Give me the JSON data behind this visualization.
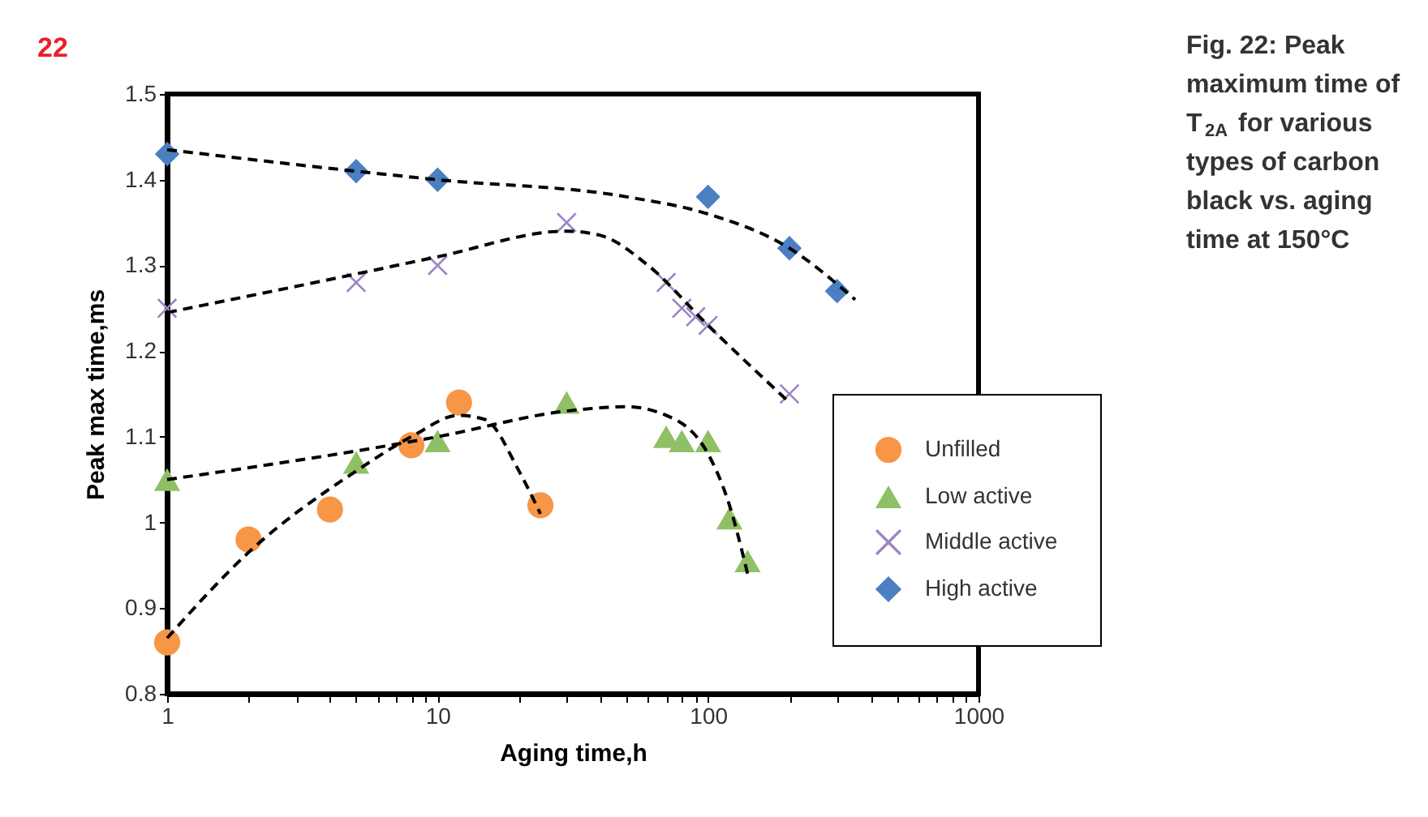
{
  "chart_data": {
    "type": "scatter",
    "title": "Fig. 22: Peak maximum time of T$_{2A}$ for various types of carbon black vs. aging time at 150°C",
    "xlabel": "Aging time,h",
    "ylabel": "Peak max time,ms",
    "annotations": [
      "22"
    ],
    "log": "x",
    "xlim": [
      1,
      1000
    ],
    "ylim": [
      0.8,
      1.5
    ],
    "xticks": [
      1,
      {
        "value": 2,
        "label": null
      },
      {
        "value": 3,
        "label": null
      },
      {
        "value": 4,
        "label": null
      },
      {
        "value": 5,
        "label": null
      },
      {
        "value": 6,
        "label": null
      },
      {
        "value": 7,
        "label": null
      },
      {
        "value": 8,
        "label": null
      },
      {
        "value": 9,
        "label": null
      },
      10,
      {
        "value": 20,
        "label": null
      },
      {
        "value": 30,
        "label": null
      },
      {
        "value": 40,
        "label": null
      },
      {
        "value": 50,
        "label": null
      },
      {
        "value": 60,
        "label": null
      },
      {
        "value": 70,
        "label": null
      },
      {
        "value": 80,
        "label": null
      },
      {
        "value": 90,
        "label": null
      },
      100,
      {
        "value": 200,
        "label": null
      },
      {
        "value": 300,
        "label": null
      },
      {
        "value": 400,
        "label": null
      },
      {
        "value": 500,
        "label": null
      },
      {
        "value": 600,
        "label": null
      },
      {
        "value": 700,
        "label": null
      },
      {
        "value": 800,
        "label": null
      },
      {
        "value": 900,
        "label": null
      },
      1000
    ],
    "yticks": [
      0.8,
      0.9,
      1,
      1.1,
      1.2,
      1.3,
      1.4,
      1.5
    ],
    "grid": false,
    "legend": "bottom right",
    "series": [
      {
        "type": "line",
        "color": "#000000",
        "line_style": "dashed",
        "x": [
          1,
          2,
          5,
          8,
          12,
          15,
          20,
          24
        ],
        "values": [
          0.865,
          0.965,
          1.06,
          1.1,
          1.125,
          1.12,
          1.06,
          1.01
        ]
      },
      {
        "type": "line",
        "color": "#000000",
        "line_style": "dashed",
        "x": [
          1,
          10,
          30,
          50,
          70,
          100,
          120,
          140
        ],
        "values": [
          1.05,
          1.1,
          1.13,
          1.135,
          1.125,
          1.08,
          1.02,
          0.94
        ]
      },
      {
        "type": "line",
        "color": "#000000",
        "line_style": "dashed",
        "x": [
          1,
          5,
          10,
          30,
          40,
          60,
          100,
          200
        ],
        "values": [
          1.245,
          1.29,
          1.31,
          1.34,
          1.335,
          1.3,
          1.23,
          1.14
        ]
      },
      {
        "type": "line",
        "color": "#000000",
        "line_style": "dashed",
        "x": [
          1,
          10,
          50,
          100,
          200,
          350
        ],
        "values": [
          1.435,
          1.4,
          1.38,
          1.36,
          1.32,
          1.26
        ]
      },
      {
        "name": "Unfilled",
        "color": "#f79646",
        "marker": "circle",
        "x": [
          1,
          2,
          4,
          8,
          12,
          24
        ],
        "values": [
          0.86,
          0.98,
          1.015,
          1.09,
          1.14,
          1.02
        ]
      },
      {
        "name": "Low active",
        "color": "#8fc065",
        "marker": "triangle",
        "x": [
          1,
          5,
          10,
          30,
          70,
          80,
          100,
          120,
          140
        ],
        "values": [
          1.05,
          1.07,
          1.095,
          1.14,
          1.1,
          1.095,
          1.095,
          1.005,
          0.955
        ]
      },
      {
        "name": "Middle active",
        "color": "#9b85c6",
        "marker": "cross",
        "x": [
          1,
          5,
          10,
          30,
          70,
          80,
          90,
          100,
          200
        ],
        "values": [
          1.25,
          1.28,
          1.3,
          1.35,
          1.28,
          1.25,
          1.24,
          1.23,
          1.15
        ]
      },
      {
        "name": "High active",
        "color": "#4a7fc1",
        "marker": "diamond",
        "x": [
          1,
          5,
          10,
          100,
          200,
          300
        ],
        "values": [
          1.43,
          1.41,
          1.4,
          1.38,
          1.32,
          1.27
        ]
      }
    ]
  }
}
